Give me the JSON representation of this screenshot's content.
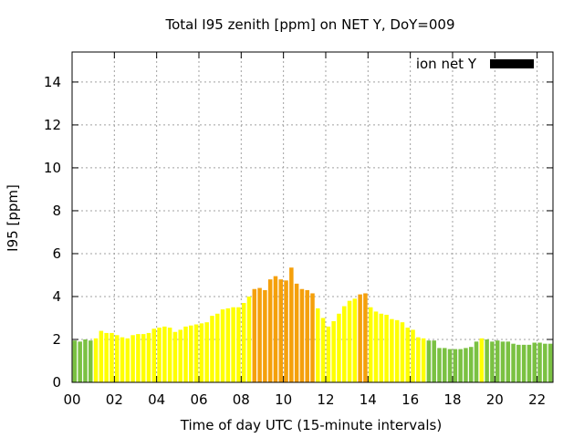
{
  "chart_data": {
    "type": "bar",
    "title": "Total I95 zenith [ppm] on NET Y, DoY=009",
    "xlabel": "Time of day UTC (15-minute intervals)",
    "ylabel": "I95 [ppm]",
    "ylim": [
      0,
      15.4
    ],
    "xlim": [
      0,
      22.75
    ],
    "yticks": [
      0,
      2,
      4,
      6,
      8,
      10,
      12,
      14
    ],
    "xticks": [
      0,
      2,
      4,
      6,
      8,
      10,
      12,
      14,
      16,
      18,
      20,
      22
    ],
    "ytick_labels": [
      "0",
      "2",
      "4",
      "6",
      "8",
      "10",
      "12",
      "14"
    ],
    "xtick_labels": [
      "00",
      "02",
      "04",
      "06",
      "08",
      "10",
      "12",
      "14",
      "16",
      "18",
      "20",
      "22"
    ],
    "grid": true,
    "legend": {
      "label": "ion net Y",
      "position": "top-right",
      "color": "#000000"
    },
    "colors": {
      "green": "#7ac142",
      "yellow": "#ffff00",
      "orange": "#f5a00b"
    },
    "interval_hours": 0.25,
    "values": [
      1.95,
      1.9,
      2.0,
      1.95,
      2.05,
      2.4,
      2.3,
      2.3,
      2.2,
      2.1,
      2.05,
      2.2,
      2.25,
      2.25,
      2.3,
      2.5,
      2.55,
      2.6,
      2.55,
      2.35,
      2.45,
      2.6,
      2.65,
      2.7,
      2.75,
      2.8,
      3.1,
      3.2,
      3.4,
      3.45,
      3.5,
      3.5,
      3.7,
      4.0,
      4.35,
      4.4,
      4.3,
      4.8,
      4.95,
      4.8,
      4.75,
      5.35,
      4.6,
      4.35,
      4.3,
      4.15,
      3.45,
      3.0,
      2.6,
      2.85,
      3.2,
      3.55,
      3.8,
      3.9,
      4.1,
      4.15,
      3.5,
      3.3,
      3.2,
      3.15,
      2.95,
      2.9,
      2.8,
      2.55,
      2.45,
      2.1,
      2.05,
      1.95,
      1.95,
      1.6,
      1.6,
      1.55,
      1.55,
      1.55,
      1.6,
      1.65,
      1.9,
      2.05,
      2.0,
      1.9,
      1.95,
      1.9,
      1.9,
      1.8,
      1.75,
      1.75,
      1.75,
      1.85,
      1.85,
      1.8,
      1.8
    ],
    "bar_colors": [
      "green",
      "green",
      "green",
      "green",
      "yellow",
      "yellow",
      "yellow",
      "yellow",
      "yellow",
      "yellow",
      "yellow",
      "yellow",
      "yellow",
      "yellow",
      "yellow",
      "yellow",
      "yellow",
      "yellow",
      "yellow",
      "yellow",
      "yellow",
      "yellow",
      "yellow",
      "yellow",
      "yellow",
      "yellow",
      "yellow",
      "yellow",
      "yellow",
      "yellow",
      "yellow",
      "yellow",
      "yellow",
      "yellow",
      "orange",
      "orange",
      "orange",
      "orange",
      "orange",
      "orange",
      "orange",
      "orange",
      "orange",
      "orange",
      "orange",
      "orange",
      "yellow",
      "yellow",
      "yellow",
      "yellow",
      "yellow",
      "yellow",
      "yellow",
      "yellow",
      "orange",
      "orange",
      "yellow",
      "yellow",
      "yellow",
      "yellow",
      "yellow",
      "yellow",
      "yellow",
      "yellow",
      "yellow",
      "yellow",
      "yellow",
      "green",
      "green",
      "green",
      "green",
      "green",
      "green",
      "green",
      "green",
      "green",
      "green",
      "yellow",
      "green",
      "green",
      "green",
      "green",
      "green",
      "green",
      "green",
      "green",
      "green",
      "green",
      "green",
      "green",
      "green"
    ]
  }
}
